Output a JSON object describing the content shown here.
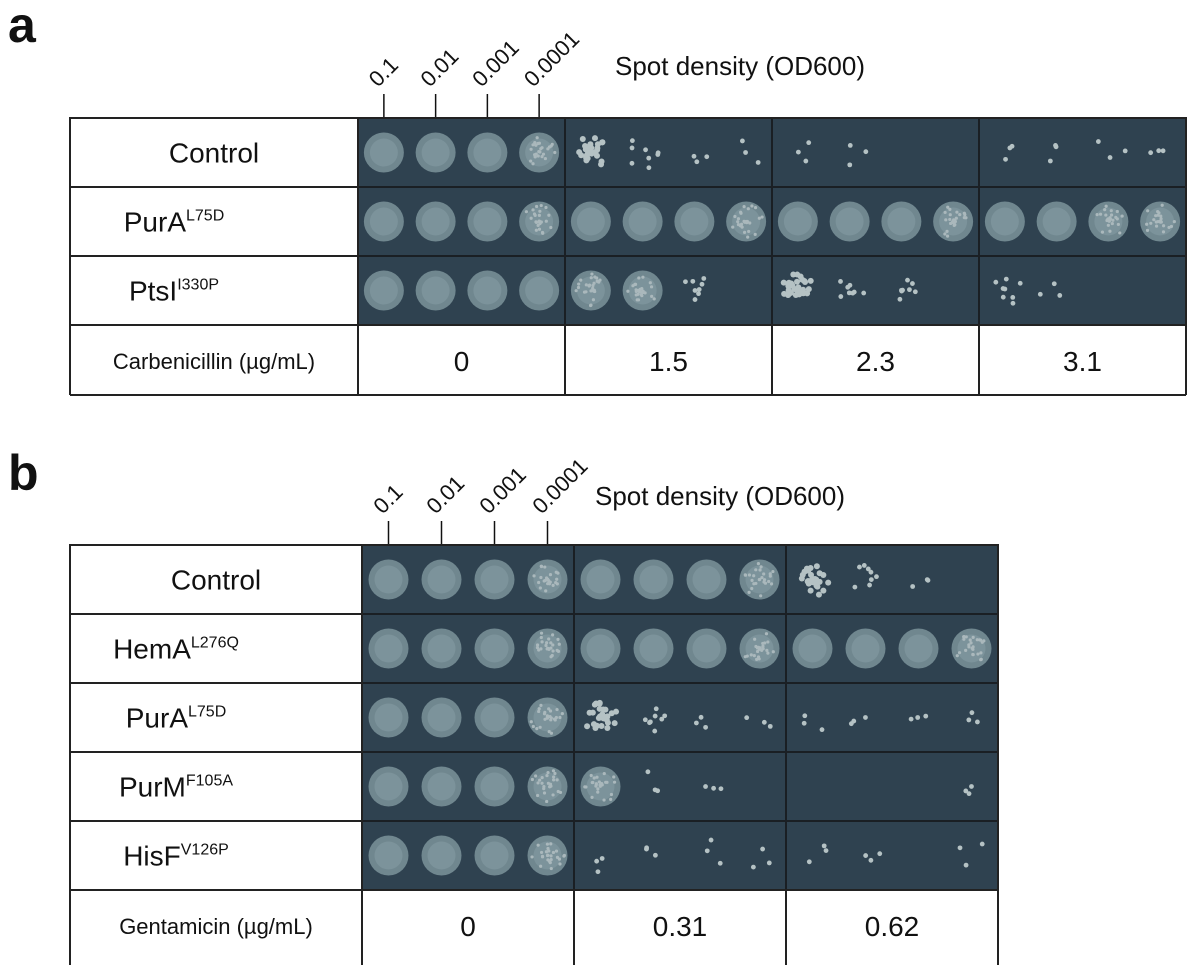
{
  "panels": [
    {
      "label": "a",
      "dilutions": [
        "0.1",
        "0.01",
        "0.001",
        "0.0001"
      ],
      "axis_title": "Spot density (OD600)",
      "rows": [
        {
          "name": "Control"
        },
        {
          "name": "PurA",
          "superscript": "L75D"
        },
        {
          "name": "PtsI",
          "superscript": "I330P"
        }
      ],
      "condition_label": "Carbenicillin (µg/mL)",
      "conditions": [
        "0",
        "1.5",
        "2.3",
        "3.1"
      ]
    },
    {
      "label": "b",
      "dilutions": [
        "0.1",
        "0.01",
        "0.001",
        "0.0001"
      ],
      "axis_title": "Spot density (OD600)",
      "rows": [
        {
          "name": "Control"
        },
        {
          "name": "HemA",
          "superscript": "L276Q"
        },
        {
          "name": "PurA",
          "superscript": "L75D"
        },
        {
          "name": "PurM",
          "superscript": "F105A"
        },
        {
          "name": "HisF",
          "superscript": "V126P"
        }
      ],
      "condition_label": "Gentamicin (µg/mL)",
      "conditions": [
        "0",
        "0.31",
        "0.62"
      ]
    }
  ]
}
